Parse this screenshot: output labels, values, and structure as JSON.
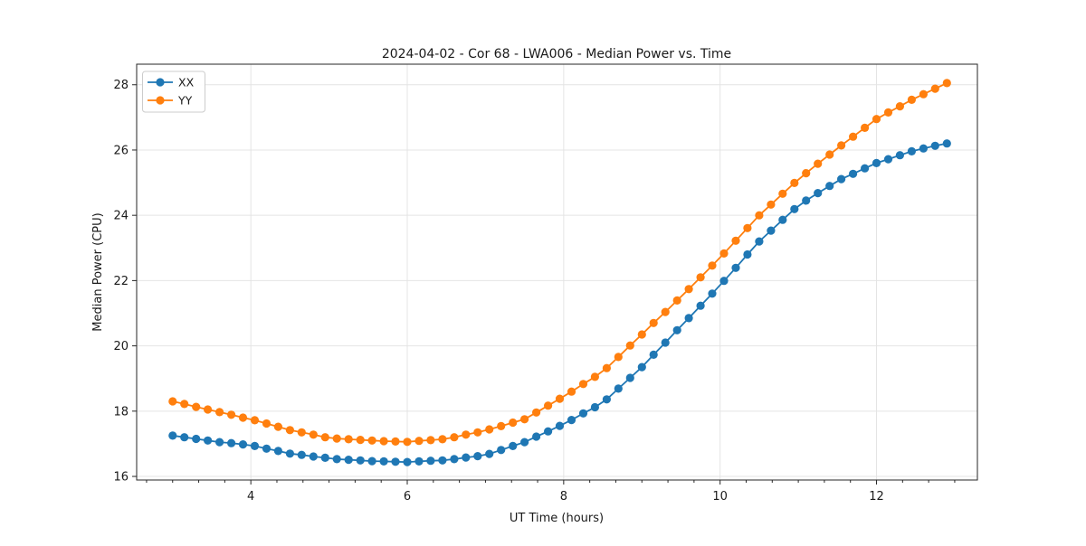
{
  "figure": {
    "title": "2024-04-02 - Cor 68 - LWA006 - Median Power vs. Time",
    "xlabel": "UT Time (hours)",
    "ylabel": "Median Power (CPU)"
  },
  "legend": {
    "position": "upper left",
    "items": [
      {
        "label": "XX",
        "color": "#1f77b4"
      },
      {
        "label": "YY",
        "color": "#ff7f0e"
      }
    ]
  },
  "chart_data": {
    "type": "line",
    "title": "2024-04-02 - Cor 68 - LWA006 - Median Power vs. Time",
    "xlabel": "UT Time (hours)",
    "ylabel": "Median Power (CPU)",
    "legend_position": "upper left",
    "grid": true,
    "axes": {
      "xlim": [
        2.54,
        13.29
      ],
      "ylim": [
        15.89,
        28.63
      ],
      "xticks": [
        4,
        6,
        8,
        10,
        12
      ],
      "yticks": [
        16,
        18,
        20,
        22,
        24,
        26,
        28
      ],
      "x_minor_step": 0.3333,
      "grid_color": "#e4e4e4",
      "spine_color": "#262626"
    },
    "x": [
      3.0,
      3.15,
      3.3,
      3.45,
      3.6,
      3.75,
      3.9,
      4.05,
      4.2,
      4.35,
      4.5,
      4.65,
      4.8,
      4.95,
      5.1,
      5.25,
      5.4,
      5.55,
      5.7,
      5.85,
      6.0,
      6.15,
      6.3,
      6.45,
      6.6,
      6.75,
      6.9,
      7.05,
      7.2,
      7.35,
      7.5,
      7.65,
      7.8,
      7.95,
      8.1,
      8.25,
      8.4,
      8.55,
      8.7,
      8.85,
      9.0,
      9.15,
      9.3,
      9.45,
      9.6,
      9.75,
      9.9,
      10.05,
      10.2,
      10.35,
      10.5,
      10.65,
      10.8,
      10.95,
      11.1,
      11.25,
      11.4,
      11.55,
      11.7,
      11.85,
      12.0,
      12.15,
      12.3,
      12.45,
      12.6,
      12.75,
      12.9
    ],
    "series": [
      {
        "name": "XX",
        "color": "#1f77b4",
        "marker": "circle",
        "values": [
          17.25,
          17.2,
          17.15,
          17.1,
          17.05,
          17.02,
          16.98,
          16.93,
          16.85,
          16.78,
          16.7,
          16.66,
          16.61,
          16.57,
          16.53,
          16.51,
          16.49,
          16.47,
          16.46,
          16.45,
          16.44,
          16.46,
          16.48,
          16.49,
          16.53,
          16.58,
          16.62,
          16.69,
          16.81,
          16.93,
          17.05,
          17.22,
          17.38,
          17.55,
          17.73,
          17.93,
          18.12,
          18.36,
          18.69,
          19.02,
          19.35,
          19.73,
          20.1,
          20.48,
          20.85,
          21.23,
          21.6,
          21.99,
          22.39,
          22.8,
          23.2,
          23.53,
          23.86,
          24.19,
          24.45,
          24.68,
          24.9,
          25.11,
          25.27,
          25.44,
          25.6,
          25.72,
          25.84,
          25.96,
          26.05,
          26.13,
          26.2
        ]
      },
      {
        "name": "YY",
        "color": "#ff7f0e",
        "marker": "circle",
        "values": [
          18.3,
          18.22,
          18.13,
          18.05,
          17.97,
          17.89,
          17.8,
          17.72,
          17.62,
          17.52,
          17.42,
          17.35,
          17.28,
          17.2,
          17.16,
          17.14,
          17.12,
          17.1,
          17.08,
          17.07,
          17.06,
          17.09,
          17.11,
          17.14,
          17.2,
          17.28,
          17.35,
          17.44,
          17.54,
          17.65,
          17.75,
          17.96,
          18.17,
          18.38,
          18.6,
          18.83,
          19.05,
          19.32,
          19.66,
          20.01,
          20.35,
          20.7,
          21.04,
          21.39,
          21.74,
          22.1,
          22.46,
          22.83,
          23.22,
          23.61,
          24.0,
          24.33,
          24.66,
          24.99,
          25.29,
          25.58,
          25.86,
          26.14,
          26.41,
          26.68,
          26.95,
          27.15,
          27.34,
          27.54,
          27.71,
          27.88,
          28.05
        ]
      }
    ]
  }
}
